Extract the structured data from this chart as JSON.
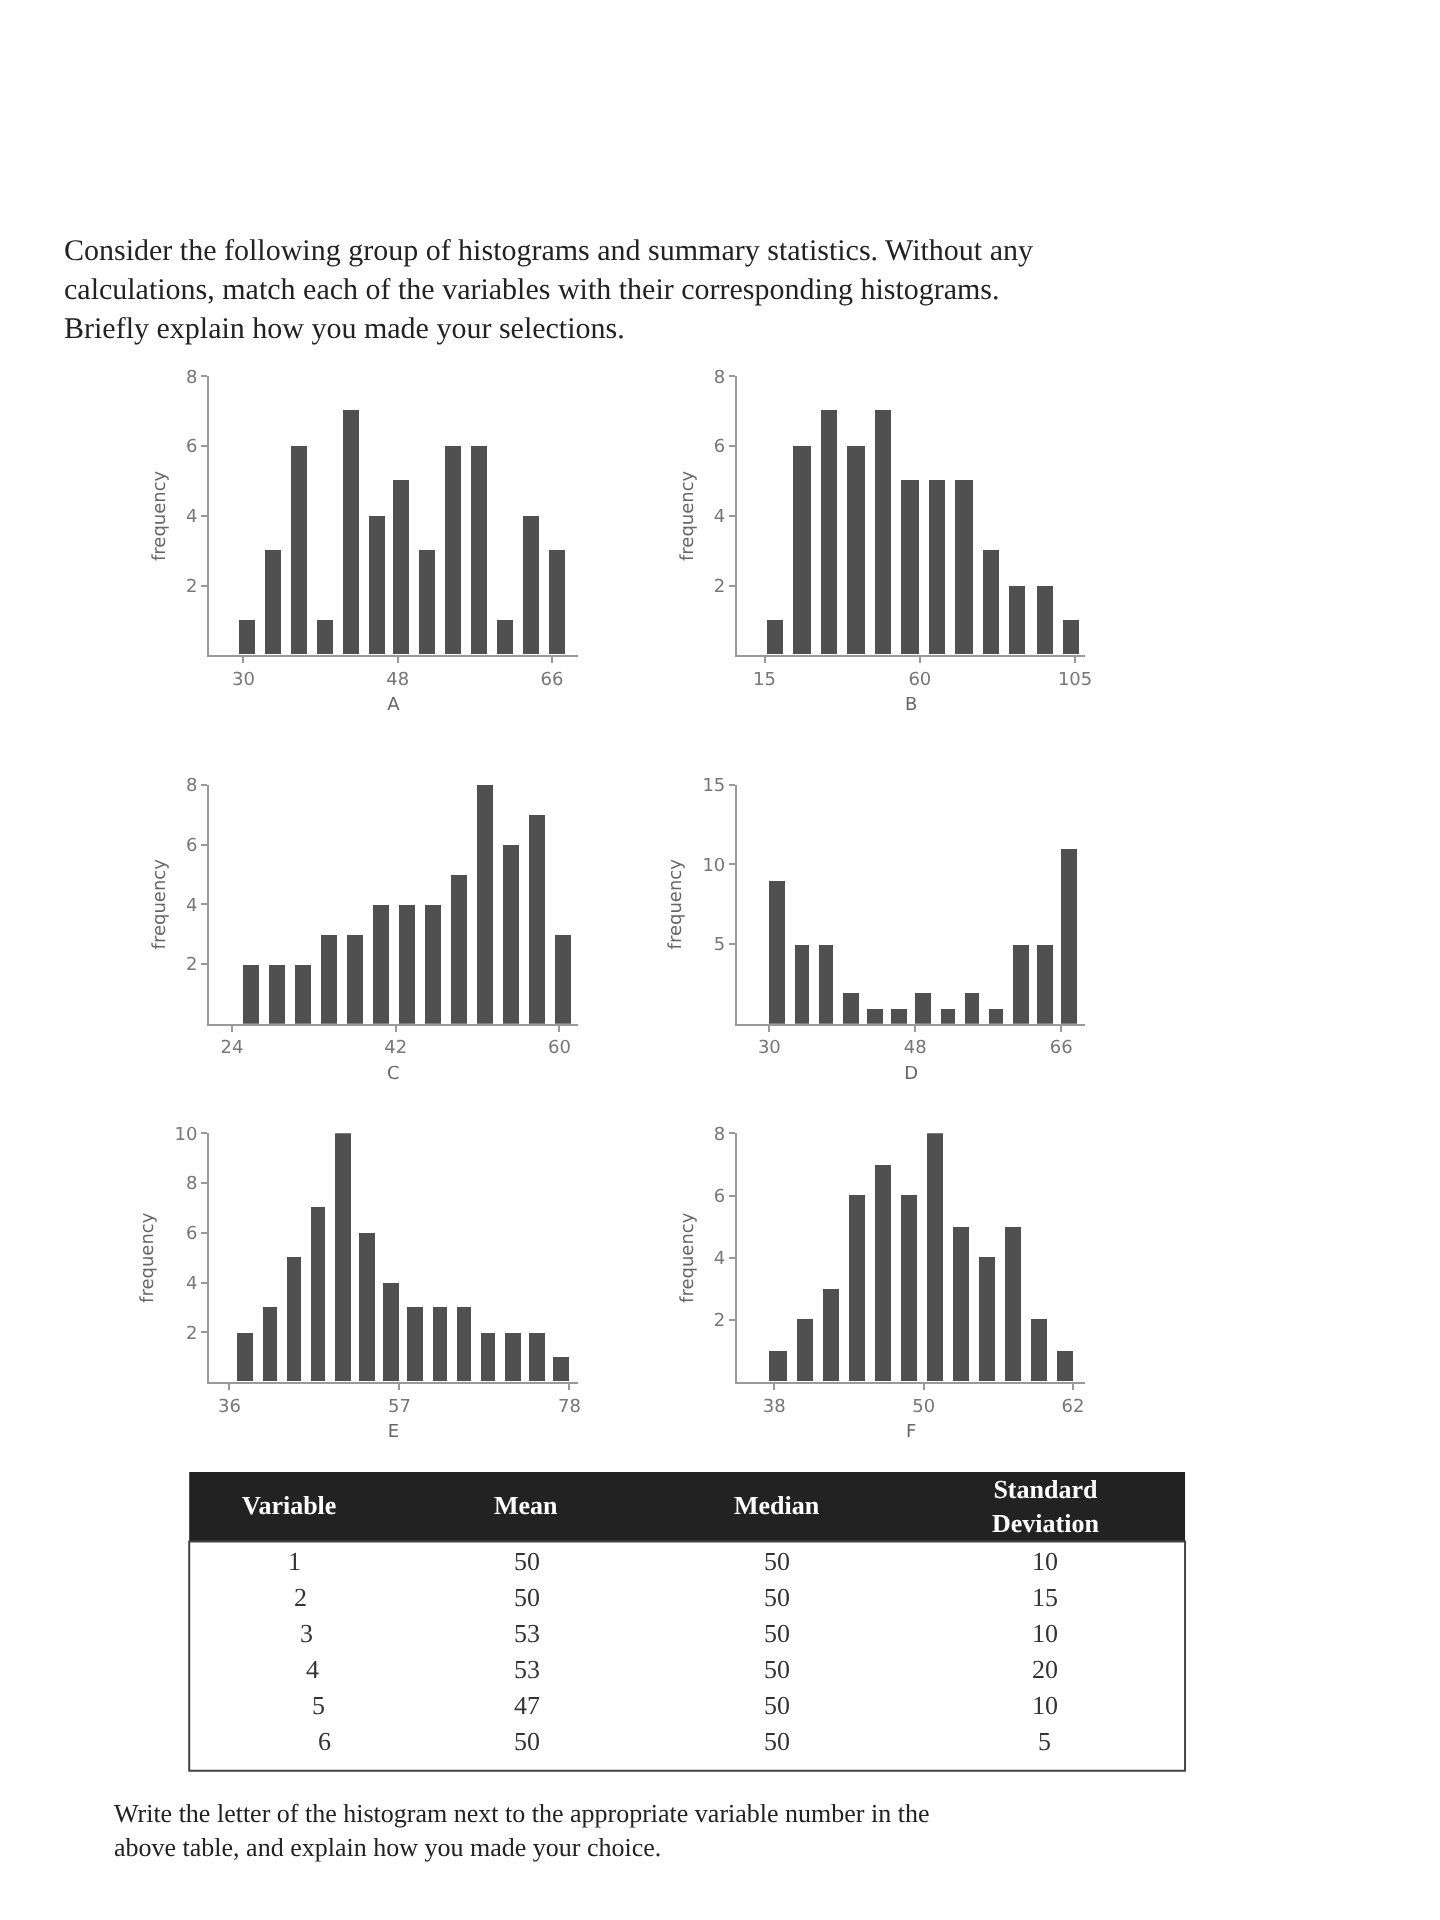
{
  "chart_data": [
    {
      "type": "other",
      "title": "Consider the following group of histograms and summary statistics. Without any calculations, match each of the variables with their corresponding histograms. Briefly explain how you made your selections."
    },
    {
      "type": "histogram",
      "xlabel": "A",
      "ylabel": "frequency",
      "color": "#505050",
      "bins": [
        29,
        32,
        35,
        38,
        41,
        44,
        47,
        50,
        53,
        56,
        59,
        62,
        65,
        68
      ],
      "values": [
        1,
        3,
        6,
        1,
        7,
        4,
        5,
        3,
        6,
        6,
        1,
        4,
        3
      ],
      "xlim": [
        26,
        69
      ],
      "xticks": [
        30,
        48,
        66
      ],
      "ylim": [
        0,
        8
      ],
      "yticks": [
        2,
        4,
        6,
        8
      ]
    },
    {
      "type": "histogram",
      "xlabel": "B",
      "ylabel": "frequency",
      "color": "#505050",
      "bins": [
        14.2,
        22,
        29.8,
        37.6,
        45.4,
        53.2,
        61,
        68.8,
        76.6,
        84.4,
        92.2,
        100,
        107.8
      ],
      "values": [
        1,
        6,
        7,
        6,
        7,
        5,
        5,
        5,
        3,
        2,
        2,
        1
      ],
      "xlim": [
        7,
        108
      ],
      "xticks": [
        15,
        60,
        105
      ],
      "ylim": [
        0,
        8
      ],
      "yticks": [
        2,
        4,
        6,
        8
      ]
    },
    {
      "type": "histogram",
      "xlabel": "C",
      "ylabel": "frequency",
      "color": "#505050",
      "bins": [
        24.7,
        27.55,
        30.4,
        33.25,
        36.1,
        38.95,
        41.8,
        44.65,
        47.5,
        50.35,
        53.2,
        56.05,
        58.9,
        61.75
      ],
      "values": [
        2,
        2,
        2,
        3,
        3,
        4,
        4,
        4,
        5,
        8,
        6,
        7,
        3
      ],
      "xlim": [
        21.5,
        62
      ],
      "xticks": [
        24,
        42,
        60
      ],
      "ylim": [
        0,
        8
      ],
      "yticks": [
        2,
        4,
        6,
        8
      ]
    },
    {
      "type": "histogram",
      "xlabel": "D",
      "ylabel": "frequency",
      "color": "#505050",
      "bins": [
        29.5,
        32.5,
        35.5,
        38.5,
        41.5,
        44.5,
        47.5,
        50.5,
        53.5,
        56.5,
        59.5,
        62.5,
        65.5,
        68.5
      ],
      "values": [
        9,
        5,
        5,
        2,
        1,
        1,
        2,
        1,
        2,
        1,
        5,
        5,
        11
      ],
      "xlim": [
        26,
        69
      ],
      "xticks": [
        30,
        48,
        66
      ],
      "ylim": [
        0,
        15
      ],
      "yticks": [
        5,
        10,
        15
      ]
    },
    {
      "type": "histogram",
      "xlabel": "E",
      "ylabel": "frequency",
      "color": "#505050",
      "bins": [
        36.5,
        39.5,
        42.5,
        45.5,
        48.5,
        51.5,
        54.5,
        57.5,
        60.5,
        63.5,
        66.5,
        69.5,
        72.5,
        75.5,
        78.5
      ],
      "values": [
        2,
        3,
        5,
        7,
        10,
        6,
        4,
        3,
        3,
        3,
        2,
        2,
        2,
        1
      ],
      "xlim": [
        33.5,
        79
      ],
      "xticks": [
        36,
        57,
        78
      ],
      "ylim": [
        0,
        10
      ],
      "yticks": [
        2,
        4,
        6,
        8,
        10
      ]
    },
    {
      "type": "histogram",
      "xlabel": "F",
      "ylabel": "frequency",
      "color": "#505050",
      "bins": [
        37.25,
        39.35,
        41.45,
        43.55,
        45.65,
        47.75,
        49.85,
        51.95,
        54.05,
        56.15,
        58.25,
        60.35,
        62.45
      ],
      "values": [
        1,
        2,
        3,
        6,
        7,
        6,
        8,
        5,
        4,
        5,
        2,
        1
      ],
      "xlim": [
        35,
        63
      ],
      "xticks": [
        38,
        50,
        62
      ],
      "ylim": [
        0,
        8
      ],
      "yticks": [
        2,
        4,
        6,
        8
      ]
    },
    {
      "type": "other",
      "annotations": [
        "Variable",
        "Mean",
        "Median",
        "Standard Deviation",
        "1",
        "50",
        "50",
        "10",
        "2",
        "50",
        "50",
        "15",
        "3",
        "53",
        "50",
        "10",
        "4",
        "53",
        "50",
        "20",
        "5",
        "47",
        "50",
        "10",
        "6",
        "50",
        "50",
        "5",
        "Write the letter of the histogram next to the appropriate variable number in the above table, and explain how you made your choice."
      ]
    }
  ]
}
